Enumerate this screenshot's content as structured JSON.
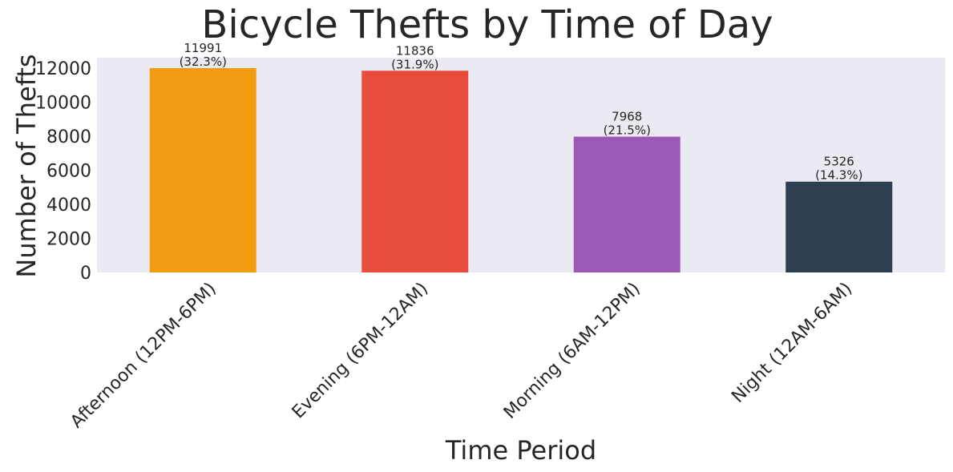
{
  "chart_data": {
    "type": "bar",
    "title": "Bicycle Thefts by Time of Day",
    "xlabel": "Time Period",
    "ylabel": "Number of Thefts",
    "categories": [
      "Afternoon (12PM-6PM)",
      "Evening (6PM-12AM)",
      "Morning (6AM-12PM)",
      "Night (12AM-6AM)"
    ],
    "values": [
      11991,
      11836,
      7968,
      5326
    ],
    "percent_labels": [
      "(32.3%)",
      "(31.9%)",
      "(21.5%)",
      "(14.3%)"
    ],
    "colors": [
      "#f39c12",
      "#e74c3c",
      "#9b59b6",
      "#2c3e50"
    ],
    "ylim": [
      0,
      12600
    ],
    "yticks": [
      0,
      2000,
      4000,
      6000,
      8000,
      10000,
      12000
    ],
    "grid": false,
    "legend": "none",
    "plot_background": "#eaeaf2"
  }
}
